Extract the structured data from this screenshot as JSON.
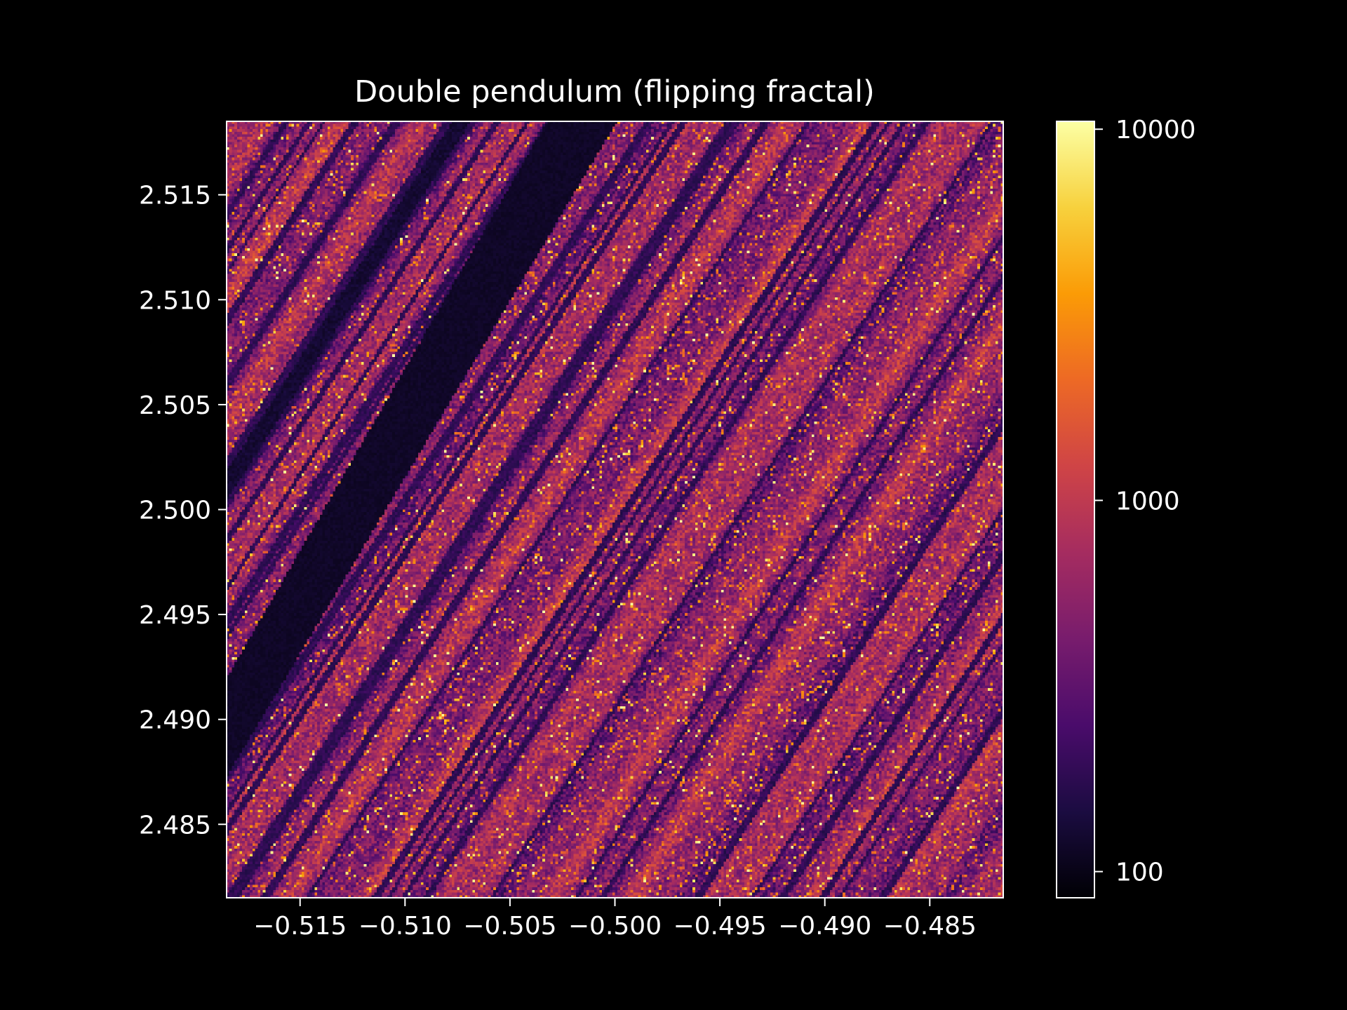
{
  "chart_data": {
    "type": "heatmap",
    "title": "Double pendulum (flipping fractal)",
    "xlabel": "",
    "ylabel": "",
    "xlim": [
      -0.5185,
      -0.4815
    ],
    "ylim": [
      2.4815,
      2.5185
    ],
    "x_ticks": [
      {
        "value": -0.515,
        "label": "−0.515"
      },
      {
        "value": -0.51,
        "label": "−0.510"
      },
      {
        "value": -0.505,
        "label": "−0.505"
      },
      {
        "value": -0.5,
        "label": "−0.500"
      },
      {
        "value": -0.495,
        "label": "−0.495"
      },
      {
        "value": -0.49,
        "label": "−0.490"
      },
      {
        "value": -0.485,
        "label": "−0.485"
      }
    ],
    "y_ticks": [
      {
        "value": 2.485,
        "label": "2.485"
      },
      {
        "value": 2.49,
        "label": "2.490"
      },
      {
        "value": 2.495,
        "label": "2.495"
      },
      {
        "value": 2.5,
        "label": "2.500"
      },
      {
        "value": 2.505,
        "label": "2.505"
      },
      {
        "value": 2.51,
        "label": "2.510"
      },
      {
        "value": 2.515,
        "label": "2.515"
      }
    ],
    "colorbar": {
      "scale": "log",
      "range": [
        85,
        10500
      ],
      "colormap": "inferno",
      "ticks": [
        {
          "value": 100,
          "label": "100"
        },
        {
          "value": 1000,
          "label": "1000"
        },
        {
          "value": 10000,
          "label": "10000"
        }
      ]
    },
    "grid": false,
    "colors": {
      "background": "#000000",
      "foreground": "#ffffff",
      "inferno_stops": [
        "#000004",
        "#1b0c41",
        "#4a0c6b",
        "#781c6d",
        "#a52c60",
        "#cf4446",
        "#ed6925",
        "#fb9b06",
        "#f7d13d",
        "#fcffa4"
      ]
    }
  }
}
